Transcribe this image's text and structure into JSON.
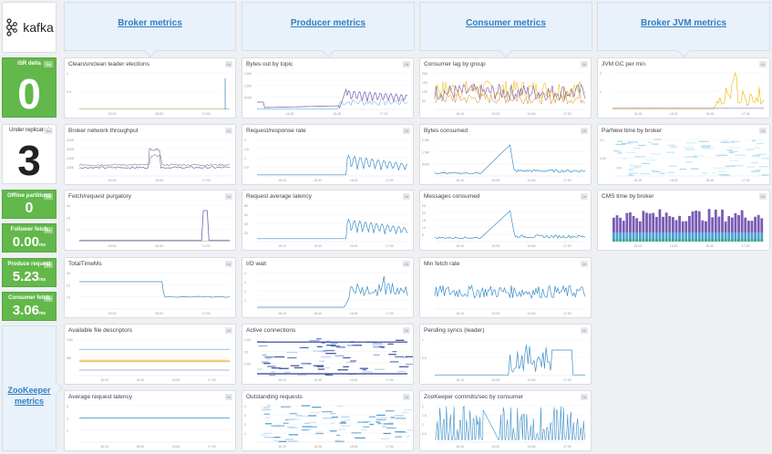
{
  "logo": {
    "text": "kafka",
    "icon": "kafka-logo-icon"
  },
  "headers": [
    {
      "label": "Broker metrics"
    },
    {
      "label": "Producer metrics"
    },
    {
      "label": "Consumer metrics"
    },
    {
      "label": "Broker JVM metrics"
    }
  ],
  "zookeeper": {
    "line1": "ZooKeeper",
    "line2": "metrics"
  },
  "query_values": {
    "isr_delta": {
      "title": "ISR delta",
      "value": "0",
      "badge": "5m"
    },
    "under_replicated": {
      "title": "Under replicated",
      "value": "3",
      "badge": "5m"
    },
    "offline_partitions": {
      "title": "Offline partitions",
      "value": "0",
      "badge": "5m"
    },
    "follower_fetch": {
      "title": "Follower fetch",
      "value": "0.00",
      "unit": "ms",
      "badge": "5m"
    },
    "produce_request": {
      "title": "Produce request",
      "value": "5.23",
      "unit": "ms",
      "badge": "5m"
    },
    "consumer_fetch": {
      "title": "Consumer fetch",
      "value": "3.06",
      "unit": "ms",
      "badge": "5m"
    }
  },
  "colors": {
    "green": "#62b84a",
    "blue": "#3d8fc6",
    "purple": "#7b5bb5",
    "yellow": "#f2c014",
    "navy": "#2a3d8f"
  },
  "charts": [
    {
      "id": "clean-unclean-leader-elections",
      "title": "Clean/unclean leader elections",
      "badge": "1d",
      "y_ticks": [
        "1",
        "0.5"
      ],
      "x_ticks": [
        "18:00",
        "06:00",
        "12:00"
      ],
      "kind": "spike",
      "color": "#3d8fc6"
    },
    {
      "id": "bytes-out-by-topic",
      "title": "Bytes out by topic",
      "badge": "1h",
      "y_ticks": [
        "2.5M",
        "1.5M",
        "500K"
      ],
      "x_ticks": [
        "16:30",
        "16:45",
        "17:00"
      ],
      "kind": "bytes-out",
      "color": "#7b5bb5"
    },
    {
      "id": "consumer-lag-by-group",
      "title": "Consumer lag by group",
      "badge": "1h",
      "y_ticks": [
        "200",
        "150",
        "100",
        "50"
      ],
      "x_ticks": [
        "16:15",
        "16:30",
        "16:45",
        "17:00"
      ],
      "kind": "lag",
      "color": "#f2c014"
    },
    {
      "id": "jvm-gc-per-min",
      "title": "JVM GC per min",
      "badge": "1h",
      "y_ticks": [
        "2",
        "1"
      ],
      "x_ticks": [
        "16:15",
        "16:30",
        "16:45",
        "17:00"
      ],
      "kind": "gc",
      "color": "#f2c014"
    },
    {
      "id": "broker-network-throughput",
      "title": "Broker network throughput",
      "badge": "1h",
      "y_ticks": [
        "400K",
        "300K",
        "200K",
        "100K"
      ],
      "x_ticks": [
        "16:30",
        "16:45",
        "17:00"
      ],
      "kind": "throughput",
      "color": "#5a6e8c"
    },
    {
      "id": "request-response-rate",
      "title": "Request/response rate",
      "badge": "1h",
      "y_ticks": [
        "2",
        "1.5",
        "1",
        "0.5"
      ],
      "x_ticks": [
        "16:15",
        "16:30",
        "16:45",
        "17:00"
      ],
      "kind": "rr",
      "color": "#3d8fc6"
    },
    {
      "id": "bytes-consumed",
      "title": "Bytes consumed",
      "badge": "1h",
      "y_ticks": [
        "2.5M",
        "1.5M",
        "500K"
      ],
      "x_ticks": [
        "16:15",
        "16:30",
        "16:45",
        "17:00"
      ],
      "kind": "bytes-consumed",
      "color": "#3d8fc6"
    },
    {
      "id": "parnew-time-by-broker",
      "title": "ParNew time by broker",
      "badge": "1h",
      "y_ticks": [
        "0.1",
        "0.05"
      ],
      "x_ticks": [
        "16:15",
        "16:30",
        "16:45",
        "17:00"
      ],
      "kind": "heatmap-light",
      "color": "#9bd0ea"
    },
    {
      "id": "fetch-request-purgatory",
      "title": "Fetch/request purgatory",
      "badge": "1d",
      "y_ticks": [
        "40",
        "20",
        "10"
      ],
      "x_ticks": [
        "18:00",
        "06:00",
        "12:00"
      ],
      "kind": "purgatory",
      "color": "#7b5bb5"
    },
    {
      "id": "request-average-latency",
      "title": "Request average latency",
      "badge": "1h",
      "y_ticks": [
        "80",
        "60",
        "40",
        "20"
      ],
      "x_ticks": [
        "16:15",
        "16:30",
        "16:45",
        "17:00"
      ],
      "kind": "latency",
      "color": "#3d8fc6"
    },
    {
      "id": "messages-consumed",
      "title": "Messages consumed",
      "badge": "1h",
      "y_ticks": [
        "25",
        "20",
        "15",
        "10",
        "5"
      ],
      "x_ticks": [
        "16:15",
        "16:30",
        "16:45",
        "17:00"
      ],
      "kind": "messages",
      "color": "#3d8fc6"
    },
    {
      "id": "cms-time-by-broker",
      "title": "CMS time by broker",
      "badge": "1h",
      "y_ticks": [],
      "x_ticks": [
        "16:15",
        "16:30",
        "16:45",
        "17:00"
      ],
      "kind": "cms",
      "color": "#7b5bb5"
    },
    {
      "id": "total-time-ms",
      "title": "TotalTimeMs",
      "badge": "1d",
      "y_ticks": [
        "30",
        "20",
        "10"
      ],
      "x_ticks": [
        "18:00",
        "06:00",
        "12:00"
      ],
      "kind": "totaltime",
      "color": "#3d8fc6"
    },
    {
      "id": "io-wait",
      "title": "I/O wait",
      "badge": "1h",
      "y_ticks": [
        "4",
        "3",
        "2",
        "1"
      ],
      "x_ticks": [
        "16:15",
        "16:30",
        "16:45",
        "17:00"
      ],
      "kind": "iowait",
      "color": "#3d8fc6"
    },
    {
      "id": "min-fetch-rate",
      "title": "Min fetch rate",
      "badge": "1h",
      "y_ticks": [],
      "x_ticks": [
        "16:15",
        "16:30",
        "16:45",
        "17:00"
      ],
      "kind": "minfetch",
      "color": "#3d8fc6"
    },
    {
      "id": "available-file-descriptors",
      "title": "Available file descriptors",
      "badge": "1h",
      "y_ticks": [
        "10M",
        "5M"
      ],
      "x_ticks": [
        "16:15",
        "16:30",
        "16:45",
        "17:00"
      ],
      "kind": "fd",
      "color": "#f2c014"
    },
    {
      "id": "active-connections",
      "title": "Active connections",
      "badge": "1h",
      "y_ticks": [
        "1.5K",
        "1K",
        "0.5K"
      ],
      "x_ticks": [
        "16:15",
        "16:30",
        "16:45",
        "17:00"
      ],
      "kind": "heatmap-dark",
      "color": "#2a3d8f"
    },
    {
      "id": "pending-syncs-leader",
      "title": "Pending syncs (leader)",
      "badge": "1h",
      "y_ticks": [
        "1",
        "0.5"
      ],
      "x_ticks": [
        "16:15",
        "16:30",
        "16:45",
        "17:00"
      ],
      "kind": "pending",
      "color": "#3d8fc6"
    },
    {
      "id": "average-request-latency",
      "title": "Average request latency",
      "badge": "1h",
      "y_ticks": [
        "3",
        "2",
        "1"
      ],
      "x_ticks": [
        "16:15",
        "16:30",
        "16:45",
        "17:00"
      ],
      "kind": "avglatency",
      "color": "#3d8fc6"
    },
    {
      "id": "outstanding-requests",
      "title": "Outstanding requests",
      "badge": "1h",
      "y_ticks": [
        "4",
        "3",
        "2",
        "1"
      ],
      "x_ticks": [
        "16:15",
        "16:30",
        "16:45",
        "17:00"
      ],
      "kind": "heatmap-mid",
      "color": "#6fa9d8"
    },
    {
      "id": "zookeeper-commits-sec-by-consumer",
      "title": "ZooKeeper commits/sec by consumer",
      "badge": "1h",
      "y_ticks": [
        "2",
        "1.5",
        "1",
        "0.5"
      ],
      "x_ticks": [
        "16:15",
        "16:30",
        "16:45",
        "17:00"
      ],
      "kind": "zkcommits",
      "color": "#3d8fc6"
    }
  ]
}
